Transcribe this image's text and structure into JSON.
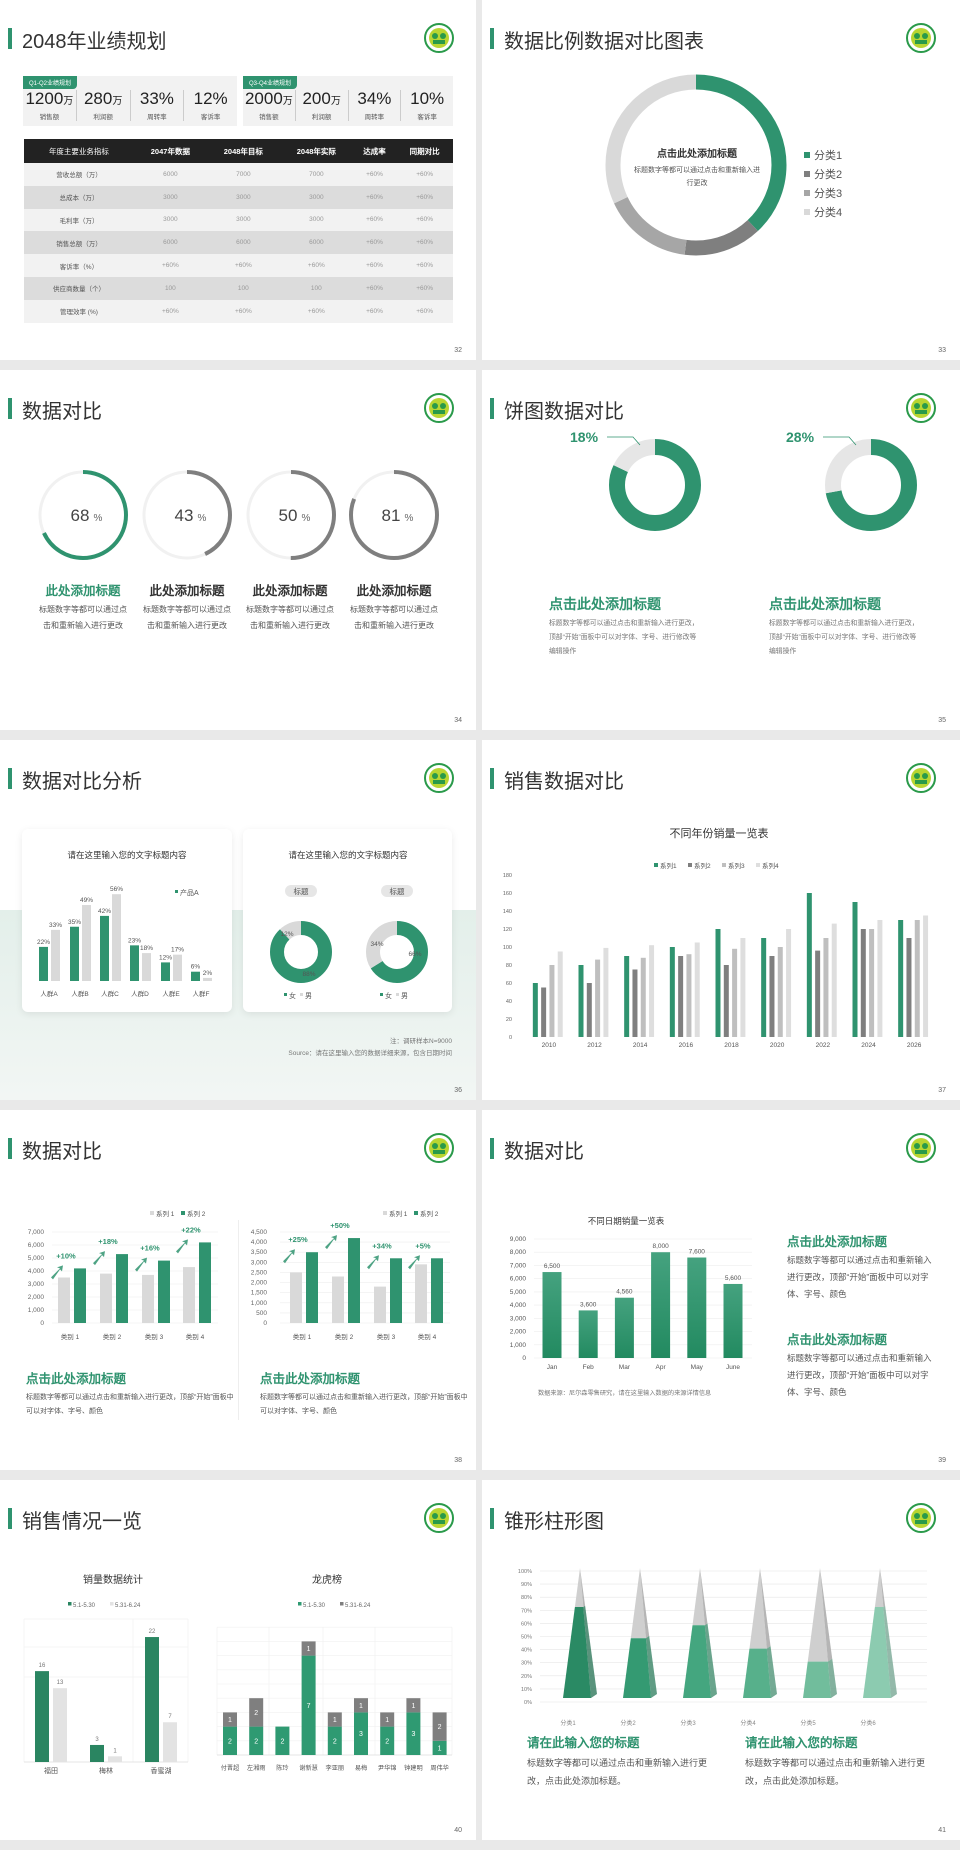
{
  "colors": {
    "accent": "#2f936f",
    "dark_gray": "#7f7f7f",
    "mid_gray": "#a6a6a6",
    "light_gray": "#d9d9d9"
  },
  "logo_icon": "green-circle-emblem-icon",
  "s32": {
    "title": "2048年业绩规划",
    "page": "32",
    "kpi_groups": [
      {
        "label": "Q1-Q2业绩规划",
        "items": [
          {
            "value": "1200",
            "unit": "万",
            "label": "销售额"
          },
          {
            "value": "280",
            "unit": "万",
            "label": "利润额"
          },
          {
            "value": "33%",
            "unit": "",
            "label": "周转率"
          },
          {
            "value": "12%",
            "unit": "",
            "label": "客诉率"
          }
        ]
      },
      {
        "label": "Q3-Q4业绩规划",
        "items": [
          {
            "value": "2000",
            "unit": "万",
            "label": "销售额"
          },
          {
            "value": "200",
            "unit": "万",
            "label": "利润额"
          },
          {
            "value": "34%",
            "unit": "",
            "label": "周转率"
          },
          {
            "value": "10%",
            "unit": "",
            "label": "客诉率"
          }
        ]
      }
    ],
    "table": {
      "headers": [
        "年度主要业务指标",
        "2047年数据",
        "2048年目标",
        "2048年实际",
        "达成率",
        "同期对比"
      ],
      "rows": [
        [
          "营收总额（万）",
          "6000",
          "7000",
          "7000",
          "+60%",
          "+60%"
        ],
        [
          "总成本（万）",
          "3000",
          "3000",
          "3000",
          "+60%",
          "+60%"
        ],
        [
          "毛利率（万）",
          "3000",
          "3000",
          "3000",
          "+60%",
          "+60%"
        ],
        [
          "销售总额（万）",
          "6000",
          "6000",
          "6000",
          "+60%",
          "+60%"
        ],
        [
          "客诉率（%）",
          "+60%",
          "+60%",
          "+60%",
          "+60%",
          "+60%"
        ],
        [
          "供应商数量（个）",
          "100",
          "100",
          "100",
          "+60%",
          "+60%"
        ],
        [
          "管理效率 (%)",
          "+60%",
          "+60%",
          "+60%",
          "+60%",
          "+60%"
        ]
      ]
    }
  },
  "s33": {
    "title": "数据比例数据对比图表",
    "page": "33",
    "center_title": "点击此处添加标题",
    "center_text": "标题数字等都可以通过点击和重新输入进行更改"
  },
  "s34": {
    "title": "数据对比",
    "page": "34",
    "items": [
      {
        "value": "68",
        "unit": "%",
        "title": "此处添加标题",
        "text": "标题数字等都可以通过点击和重新输入进行更改"
      },
      {
        "value": "43",
        "unit": "%",
        "title": "此处添加标题",
        "text": "标题数字等都可以通过点击和重新输入进行更改"
      },
      {
        "value": "50",
        "unit": "%",
        "title": "此处添加标题",
        "text": "标题数字等都可以通过点击和重新输入进行更改"
      },
      {
        "value": "81",
        "unit": "%",
        "title": "此处添加标题",
        "text": "标题数字等都可以通过点击和重新输入进行更改"
      }
    ]
  },
  "s35": {
    "title": "饼图数据对比",
    "page": "35",
    "items": [
      {
        "value": "18%",
        "fraction": 18,
        "title": "点击此处添加标题",
        "text": "标题数字等都可以通过点击和重新输入进行更改，顶部“开始”面板中可以对字体、字号、进行修改等编辑操作"
      },
      {
        "value": "28%",
        "fraction": 28,
        "title": "点击此处添加标题",
        "text": "标题数字等都可以通过点击和重新输入进行更改，顶部“开始”面板中可以对字体、字号、进行修改等编辑操作"
      }
    ]
  },
  "s36": {
    "title": "数据对比分析",
    "page": "36",
    "card1_title": "请在这里输入您的文字标题内容",
    "card2_title": "请在这里输入您的文字标题内容",
    "note": "注：调研样本N=9000",
    "source": "Source：请在这里输入您的数据详细来源，包含日期时间"
  },
  "s37": {
    "title": "销售数据对比",
    "page": "37"
  },
  "s38": {
    "title": "数据对比",
    "page": "38",
    "items": [
      {
        "title": "点击此处添加标题",
        "text": "标题数字等都可以通过点击和重新输入进行更改，顶部“开始”面板中可以对字体、字号、颜色"
      },
      {
        "title": "点击此处添加标题",
        "text": "标题数字等都可以通过点击和重新输入进行更改，顶部“开始”面板中可以对字体、字号、颜色"
      }
    ]
  },
  "s39": {
    "title": "数据对比",
    "page": "39",
    "source": "数据来源：尼尔森零售研究，请在这里输入数据的来源详情信息",
    "items": [
      {
        "title": "点击此处添加标题",
        "text": "标题数字等都可以通过点击和重新输入进行更改，顶部“开始”面板中可以对字体、字号、颜色"
      },
      {
        "title": "点击此处添加标题",
        "text": "标题数字等都可以通过点击和重新输入进行更改，顶部“开始”面板中可以对字体、字号、颜色"
      }
    ]
  },
  "s40": {
    "title": "销售情况一览",
    "page": "40"
  },
  "s41": {
    "title": "锥形柱形图",
    "page": "41",
    "items": [
      {
        "title": "请在此输入您的标题",
        "text": "标题数字等都可以通过点击和重新输入进行更改，点击此处添加标题。"
      },
      {
        "title": "请在此输入您的标题",
        "text": "标题数字等都可以通过点击和重新输入进行更改，点击此处添加标题。"
      }
    ]
  },
  "chart_data": [
    {
      "type": "pie",
      "variant": "donut",
      "categories": [
        "分类1",
        "分类2",
        "分类3",
        "分类4"
      ],
      "values": [
        38,
        14,
        16,
        32
      ],
      "colors": [
        "#2f936f",
        "#7f7f7f",
        "#a6a6a6",
        "#d9d9d9"
      ],
      "legend": "right"
    },
    {
      "type": "bar",
      "title": "请在这里输入您的文字标题内容",
      "categories": [
        "人群A",
        "人群B",
        "人群C",
        "人群D",
        "人群E",
        "人群F"
      ],
      "unit": "%",
      "series": [
        {
          "name": "产品A",
          "values": [
            22,
            35,
            42,
            23,
            12,
            6
          ],
          "color": "#2f936f"
        },
        {
          "values": [
            33,
            49,
            56,
            18,
            17,
            2
          ],
          "color": "#d9d9d9"
        }
      ],
      "legend": "top-right"
    },
    {
      "type": "pie",
      "variant": "donut",
      "pies": [
        {
          "title": "标题",
          "values": [
            88,
            12
          ]
        },
        {
          "title": "标题",
          "values": [
            66,
            34
          ]
        }
      ],
      "categories": [
        "女",
        "男"
      ],
      "unit": "%",
      "colors": [
        "#2f936f",
        "#d9d9d9"
      ],
      "legend": "bottom"
    },
    {
      "type": "bar",
      "title": "不同年份销量一览表",
      "categories": [
        "2010",
        "2012",
        "2014",
        "2016",
        "2018",
        "2020",
        "2022",
        "2024",
        "2026"
      ],
      "ylim": [
        0,
        180
      ],
      "yticks": [
        "0",
        "20",
        "40",
        "60",
        "80",
        "100",
        "120",
        "140",
        "160",
        "180"
      ],
      "legend": "top",
      "grid": false,
      "series": [
        {
          "name": "系列1",
          "values": [
            60,
            80,
            90,
            100,
            120,
            110,
            160,
            150,
            130
          ],
          "color": "#2f936f"
        },
        {
          "name": "系列2",
          "values": [
            55,
            60,
            75,
            90,
            80,
            90,
            96,
            120,
            110
          ],
          "color": "#7f7f7f"
        },
        {
          "name": "系列3",
          "values": [
            80,
            86,
            88,
            92,
            98,
            100,
            110,
            120,
            130
          ],
          "color": "#bfbfbf"
        },
        {
          "name": "系列4",
          "values": [
            95,
            99,
            102,
            105,
            110,
            120,
            126,
            130,
            135
          ],
          "color": "#dedede"
        }
      ]
    },
    {
      "type": "bar",
      "categories": [
        "类别 1",
        "类别 2",
        "类别 3",
        "类别 4"
      ],
      "ylim": [
        0,
        7000
      ],
      "yticks": [
        "0",
        "1,000",
        "2,000",
        "3,000",
        "4,000",
        "5,000",
        "6,000",
        "7,000"
      ],
      "legend": "top-right",
      "grid": true,
      "series": [
        {
          "name": "系列 1",
          "values": [
            3500,
            3800,
            3700,
            4300
          ],
          "color": "#d9d9d9"
        },
        {
          "name": "系列 2",
          "values": [
            4200,
            5300,
            4800,
            6200
          ],
          "color": "#2f936f"
        }
      ],
      "growth_labels": [
        "+10%",
        "+18%",
        "+16%",
        "+22%"
      ]
    },
    {
      "type": "bar",
      "categories": [
        "类别 1",
        "类别 2",
        "类别 3",
        "类别 4"
      ],
      "ylim": [
        0,
        4500
      ],
      "yticks": [
        "0",
        "500",
        "1,000",
        "1,500",
        "2,000",
        "2,500",
        "3,000",
        "3,500",
        "4,000",
        "4,500"
      ],
      "legend": "top-right",
      "grid": true,
      "series": [
        {
          "name": "系列 1",
          "values": [
            2500,
            2300,
            1800,
            2900
          ],
          "color": "#d9d9d9"
        },
        {
          "name": "系列 2",
          "values": [
            3500,
            4200,
            3200,
            3200
          ],
          "color": "#2f936f"
        }
      ],
      "growth_labels": [
        "+25%",
        "+50%",
        "+34%",
        "+5%"
      ]
    },
    {
      "type": "bar",
      "title": "不同日期销量一览表",
      "categories": [
        "Jan",
        "Feb",
        "Mar",
        "Apr",
        "May",
        "June"
      ],
      "values": [
        6500,
        3600,
        4560,
        8000,
        7600,
        5600
      ],
      "data_labels": [
        "6,500",
        "3,600",
        "4,560",
        "8,000",
        "7,600",
        "5,600"
      ],
      "ylim": [
        0,
        9000
      ],
      "yticks": [
        "0",
        "1,000",
        "2,000",
        "3,000",
        "4,000",
        "5,000",
        "6,000",
        "7,000",
        "8,000",
        "9,000"
      ],
      "grid": true
    },
    {
      "type": "bar",
      "title": "销量数据统计",
      "categories": [
        "福田",
        "梅林",
        "香蜜湖"
      ],
      "legend": "top",
      "series": [
        {
          "name": "5.1-5.30",
          "values": [
            16,
            3,
            22
          ],
          "color": "#2a8561"
        },
        {
          "name": "5.31-6.24",
          "values": [
            13,
            1,
            7
          ],
          "color": "#e3e3e3"
        }
      ]
    },
    {
      "type": "bar",
      "variant": "stacked",
      "title": "龙虎榜",
      "categories": [
        "付晋超",
        "左湘雨",
        "陈玲",
        "谢新慧",
        "李亚丽",
        "易梅",
        "尹华锦",
        "钟建明",
        "周伟华"
      ],
      "legend": "top",
      "series": [
        {
          "name": "5.1-5.30",
          "values": [
            2,
            2,
            2,
            7,
            2,
            3,
            2,
            3,
            1
          ],
          "color": "#2f9a72"
        },
        {
          "name": "5.31-6.24",
          "values": [
            1,
            2,
            0,
            1,
            1,
            1,
            1,
            1,
            2
          ],
          "color": "#7f7f7f"
        }
      ]
    },
    {
      "type": "bar",
      "variant": "cone",
      "categories": [
        "分类1",
        "分类2",
        "分类3",
        "分类4",
        "分类5",
        "分类6"
      ],
      "values": [
        70,
        46,
        56,
        38,
        28,
        70
      ],
      "ylim": [
        0,
        100
      ],
      "yticks": [
        "0%",
        "10%",
        "20%",
        "30%",
        "40%",
        "50%",
        "60%",
        "70%",
        "80%",
        "90%",
        "100%"
      ],
      "grid": true,
      "colors": [
        "#2a8a64",
        "#349a72",
        "#44a67f",
        "#57b08b",
        "#71bd9c",
        "#8ccbb0"
      ]
    }
  ]
}
